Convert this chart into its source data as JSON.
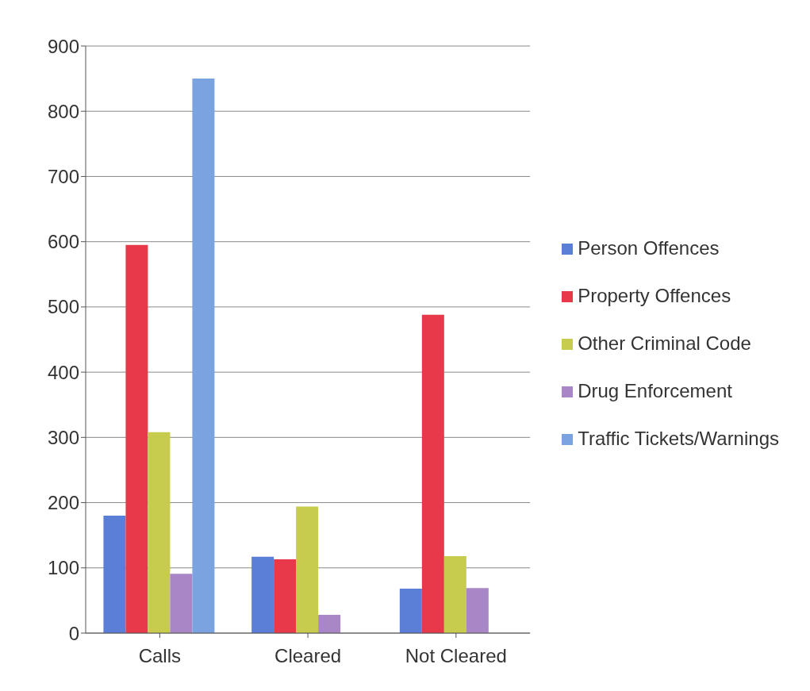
{
  "chart_data": {
    "type": "bar",
    "categories": [
      "Calls",
      "Cleared",
      "Not Cleared"
    ],
    "series": [
      {
        "name": "Person Offences",
        "color": "#5b7fd6",
        "values": [
          180,
          117,
          68
        ]
      },
      {
        "name": "Property Offences",
        "color": "#e8394a",
        "values": [
          595,
          113,
          488
        ]
      },
      {
        "name": "Other Criminal Code",
        "color": "#c8cc4e",
        "values": [
          308,
          194,
          118
        ]
      },
      {
        "name": "Drug Enforcement",
        "color": "#a987c6",
        "values": [
          91,
          28,
          69
        ]
      },
      {
        "name": "Traffic Tickets/Warnings",
        "color": "#7ba3e0",
        "values": [
          850,
          null,
          null
        ]
      }
    ],
    "ylim": [
      0,
      900
    ],
    "yticks": [
      0,
      100,
      200,
      300,
      400,
      500,
      600,
      700,
      800,
      900
    ],
    "grid": "y",
    "legend": "right"
  }
}
